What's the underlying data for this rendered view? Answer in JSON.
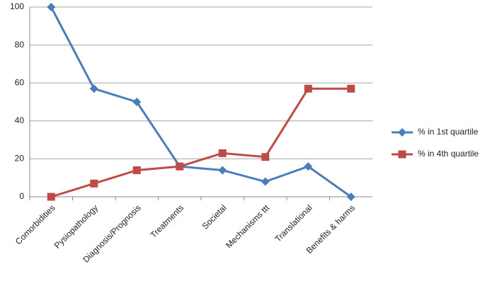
{
  "chart_data": {
    "type": "line",
    "categories": [
      "Comorbidities",
      "Pysiopathology",
      "Diagnosis/Prognosis",
      "Treatments",
      "Societal",
      "Mechanisms ttt",
      "Translational",
      "Benefits & harms"
    ],
    "series": [
      {
        "name": "% in 1st quartile",
        "color": "#4a7ebb",
        "marker": "diamond",
        "values": [
          100,
          57,
          50,
          16,
          14,
          8,
          16,
          0
        ]
      },
      {
        "name": "% in 4th quartile",
        "color": "#be4b48",
        "marker": "square",
        "values": [
          0,
          7,
          14,
          16,
          23,
          21,
          57,
          57
        ]
      }
    ],
    "ylim": [
      0,
      100
    ],
    "yticks": [
      0,
      20,
      40,
      60,
      80,
      100
    ],
    "grid": true,
    "legend": "right"
  }
}
